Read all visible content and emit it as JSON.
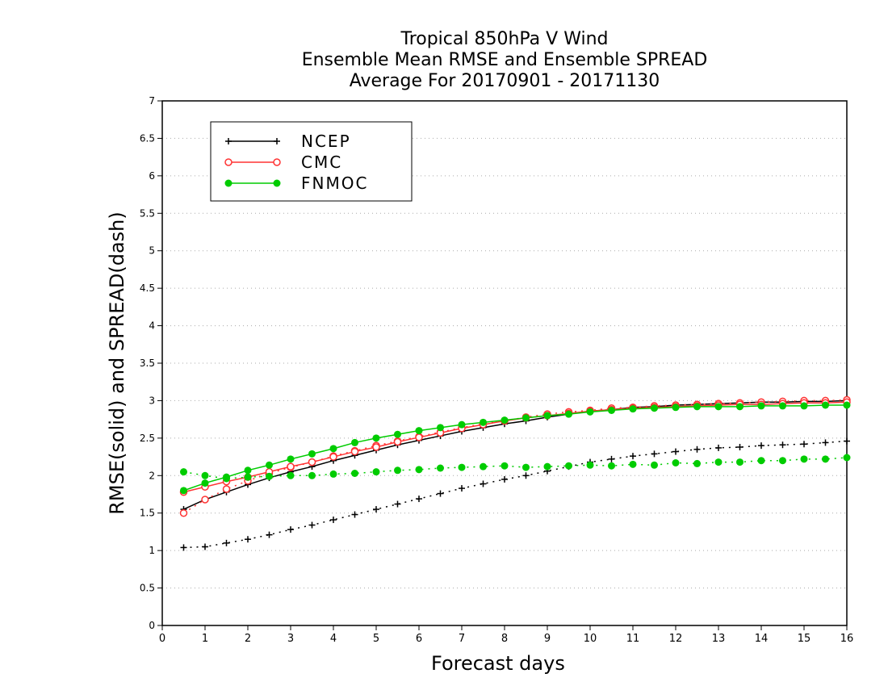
{
  "chart_data": {
    "type": "line",
    "title_lines": [
      "Tropical 850hPa V Wind",
      "Ensemble Mean RMSE and Ensemble SPREAD",
      "Average For 20170901 - 20171130"
    ],
    "xlabel": "Forecast days",
    "ylabel": "RMSE(solid) and SPREAD(dash)",
    "xlim": [
      0,
      16
    ],
    "ylim": [
      0,
      7
    ],
    "x_ticks": [
      "0",
      "1",
      "2",
      "3",
      "4",
      "5",
      "6",
      "7",
      "8",
      "9",
      "10",
      "11",
      "12",
      "13",
      "14",
      "15",
      "16"
    ],
    "y_ticks": [
      "0",
      "0.5",
      "1",
      "1.5",
      "2",
      "2.5",
      "3",
      "3.5",
      "4",
      "4.5",
      "5",
      "5.5",
      "6",
      "6.5",
      "7"
    ],
    "grid": "horizontal dotted",
    "legend_position": "top-left",
    "x": [
      0.5,
      1,
      1.5,
      2,
      2.5,
      3,
      3.5,
      4,
      4.5,
      5,
      5.5,
      6,
      6.5,
      7,
      7.5,
      8,
      8.5,
      9,
      9.5,
      10,
      10.5,
      11,
      11.5,
      12,
      12.5,
      13,
      13.5,
      14,
      14.5,
      15,
      15.5,
      16
    ],
    "series": [
      {
        "name": "NCEP",
        "color": "#000000",
        "marker": "plus",
        "rmse": [
          1.55,
          1.68,
          1.78,
          1.88,
          1.97,
          2.05,
          2.12,
          2.2,
          2.27,
          2.34,
          2.41,
          2.47,
          2.53,
          2.59,
          2.64,
          2.69,
          2.73,
          2.78,
          2.82,
          2.86,
          2.88,
          2.91,
          2.92,
          2.94,
          2.95,
          2.96,
          2.97,
          2.98,
          2.98,
          2.99,
          2.99,
          3.0
        ],
        "spread": [
          1.04,
          1.05,
          1.1,
          1.15,
          1.21,
          1.28,
          1.34,
          1.41,
          1.48,
          1.55,
          1.62,
          1.69,
          1.76,
          1.83,
          1.89,
          1.95,
          2.0,
          2.06,
          2.12,
          2.18,
          2.22,
          2.26,
          2.29,
          2.32,
          2.35,
          2.37,
          2.38,
          2.4,
          2.41,
          2.42,
          2.44,
          2.46
        ]
      },
      {
        "name": "CMC",
        "color": "#ff3333",
        "marker": "open-circle",
        "rmse": [
          1.78,
          1.85,
          1.92,
          1.98,
          2.05,
          2.12,
          2.18,
          2.25,
          2.32,
          2.38,
          2.45,
          2.51,
          2.57,
          2.63,
          2.68,
          2.73,
          2.77,
          2.8,
          2.83,
          2.86,
          2.88,
          2.9,
          2.91,
          2.92,
          2.93,
          2.94,
          2.95,
          2.95,
          2.96,
          2.97,
          2.97,
          2.98
        ],
        "spread": [
          1.5,
          1.68,
          1.82,
          1.93,
          2.03,
          2.11,
          2.18,
          2.26,
          2.33,
          2.4,
          2.46,
          2.52,
          2.58,
          2.64,
          2.69,
          2.73,
          2.78,
          2.82,
          2.85,
          2.87,
          2.9,
          2.91,
          2.93,
          2.94,
          2.95,
          2.96,
          2.97,
          2.98,
          2.99,
          3.0,
          3.0,
          3.01
        ]
      },
      {
        "name": "FNMOC",
        "color": "#00cc00",
        "marker": "filled-circle",
        "rmse": [
          1.8,
          1.9,
          1.98,
          2.07,
          2.14,
          2.22,
          2.29,
          2.36,
          2.44,
          2.5,
          2.55,
          2.6,
          2.64,
          2.68,
          2.71,
          2.74,
          2.77,
          2.8,
          2.82,
          2.85,
          2.87,
          2.89,
          2.9,
          2.91,
          2.92,
          2.92,
          2.92,
          2.93,
          2.93,
          2.93,
          2.94,
          2.94
        ],
        "spread": [
          2.05,
          2.0,
          1.96,
          1.98,
          1.99,
          2.0,
          2.0,
          2.02,
          2.03,
          2.05,
          2.07,
          2.08,
          2.1,
          2.11,
          2.12,
          2.13,
          2.11,
          2.12,
          2.13,
          2.14,
          2.13,
          2.15,
          2.14,
          2.17,
          2.16,
          2.18,
          2.18,
          2.2,
          2.2,
          2.22,
          2.22,
          2.24
        ]
      }
    ]
  }
}
